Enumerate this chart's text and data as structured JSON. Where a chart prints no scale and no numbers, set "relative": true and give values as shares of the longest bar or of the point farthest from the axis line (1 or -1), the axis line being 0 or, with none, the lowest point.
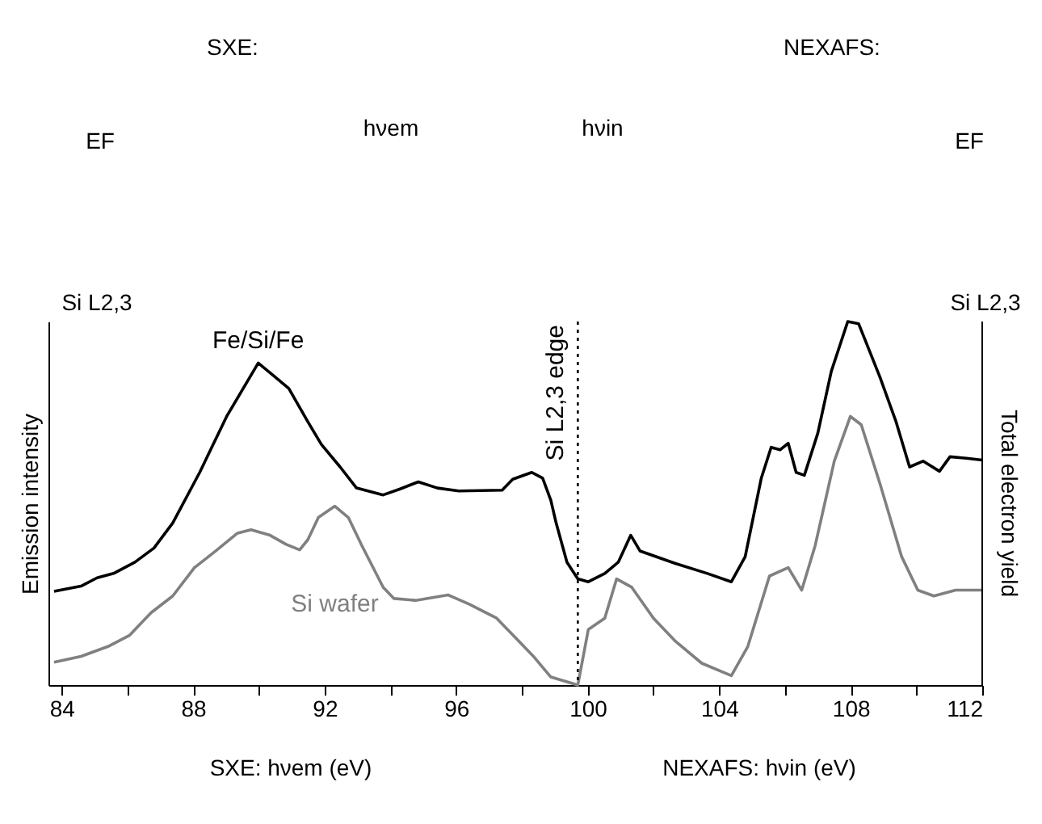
{
  "chart_data": {
    "type": "line",
    "relative": true,
    "ylabel": "Emission intensity",
    "y2label": "Total electron yield",
    "xlim": [
      83.6,
      112
    ],
    "xticks": [
      84,
      {
        "value": 86,
        "label": null
      },
      88,
      {
        "value": 90,
        "label": null
      },
      92,
      {
        "value": 94,
        "label": null
      },
      96,
      {
        "value": 98,
        "label": null
      },
      100,
      {
        "value": 102,
        "label": null
      },
      104,
      {
        "value": 106,
        "label": null
      },
      108,
      {
        "value": 110,
        "label": null
      },
      112
    ],
    "grid": false,
    "marker": "none",
    "line_style": "solid",
    "ref_lines": [
      {
        "axis": "x",
        "value": 99.7,
        "label": "Si L2,3 edge",
        "line_style": "dotted",
        "color": "#000000"
      }
    ],
    "annotations": [
      "SXE:",
      "EF",
      "Si L2,3",
      "hνem",
      "NEXAFS:",
      "hνin",
      "EF",
      "Si L2,3",
      "SXE: hνem (eV)",
      "NEXAFS: hνin (eV)"
    ],
    "series": [
      {
        "name": "Fe/Si/Fe",
        "color": "#000000",
        "x": [
          83.77,
          84.59,
          85.08,
          85.58,
          86.23,
          86.81,
          87.38,
          88.2,
          89.02,
          89.98,
          90.5,
          90.91,
          91.49,
          91.9,
          92.47,
          92.97,
          93.78,
          94.28,
          94.85,
          95.43,
          96.08,
          97.4,
          97.72,
          98.3,
          98.63,
          98.88,
          99.04,
          99.37,
          99.7,
          100.02,
          100.52,
          100.93,
          101.31,
          101.59,
          101.99,
          102.65,
          103.64,
          104.37,
          104.79,
          105.28,
          105.58,
          105.85,
          106.1,
          106.34,
          106.59,
          107.0,
          107.41,
          107.91,
          108.24,
          108.89,
          109.38,
          109.79,
          110.2,
          110.7,
          111.02,
          111.52,
          112.0
        ],
        "values": [
          0.258,
          0.272,
          0.295,
          0.307,
          0.338,
          0.377,
          0.446,
          0.585,
          0.739,
          0.886,
          0.847,
          0.816,
          0.724,
          0.662,
          0.6,
          0.542,
          0.523,
          0.539,
          0.559,
          0.542,
          0.534,
          0.536,
          0.566,
          0.585,
          0.569,
          0.508,
          0.446,
          0.338,
          0.292,
          0.284,
          0.307,
          0.338,
          0.412,
          0.369,
          0.356,
          0.335,
          0.307,
          0.284,
          0.353,
          0.569,
          0.654,
          0.647,
          0.665,
          0.585,
          0.577,
          0.693,
          0.863,
          1.0,
          0.994,
          0.847,
          0.724,
          0.6,
          0.616,
          0.588,
          0.628,
          0.624,
          0.619
        ]
      },
      {
        "name": "Si wafer",
        "color": "#808080",
        "x": [
          83.77,
          84.59,
          85.41,
          86.07,
          86.72,
          87.38,
          88.04,
          88.69,
          89.35,
          89.76,
          90.34,
          90.83,
          91.24,
          91.49,
          91.81,
          92.31,
          92.72,
          93.13,
          93.78,
          94.11,
          94.77,
          95.75,
          96.41,
          97.23,
          97.89,
          98.38,
          98.88,
          99.7,
          100.02,
          100.52,
          100.88,
          101.34,
          102.0,
          102.65,
          103.47,
          104.37,
          104.87,
          105.53,
          106.1,
          106.51,
          106.92,
          107.5,
          107.99,
          108.32,
          108.89,
          109.55,
          110.04,
          110.53,
          111.19,
          112.0
        ],
        "values": [
          0.063,
          0.079,
          0.106,
          0.137,
          0.199,
          0.245,
          0.323,
          0.369,
          0.418,
          0.427,
          0.412,
          0.387,
          0.372,
          0.4,
          0.461,
          0.492,
          0.461,
          0.384,
          0.269,
          0.238,
          0.233,
          0.248,
          0.222,
          0.184,
          0.122,
          0.076,
          0.022,
          0.0,
          0.153,
          0.184,
          0.292,
          0.269,
          0.184,
          0.122,
          0.06,
          0.026,
          0.106,
          0.3,
          0.323,
          0.261,
          0.384,
          0.616,
          0.739,
          0.716,
          0.554,
          0.353,
          0.261,
          0.245,
          0.261,
          0.261
        ]
      }
    ]
  }
}
